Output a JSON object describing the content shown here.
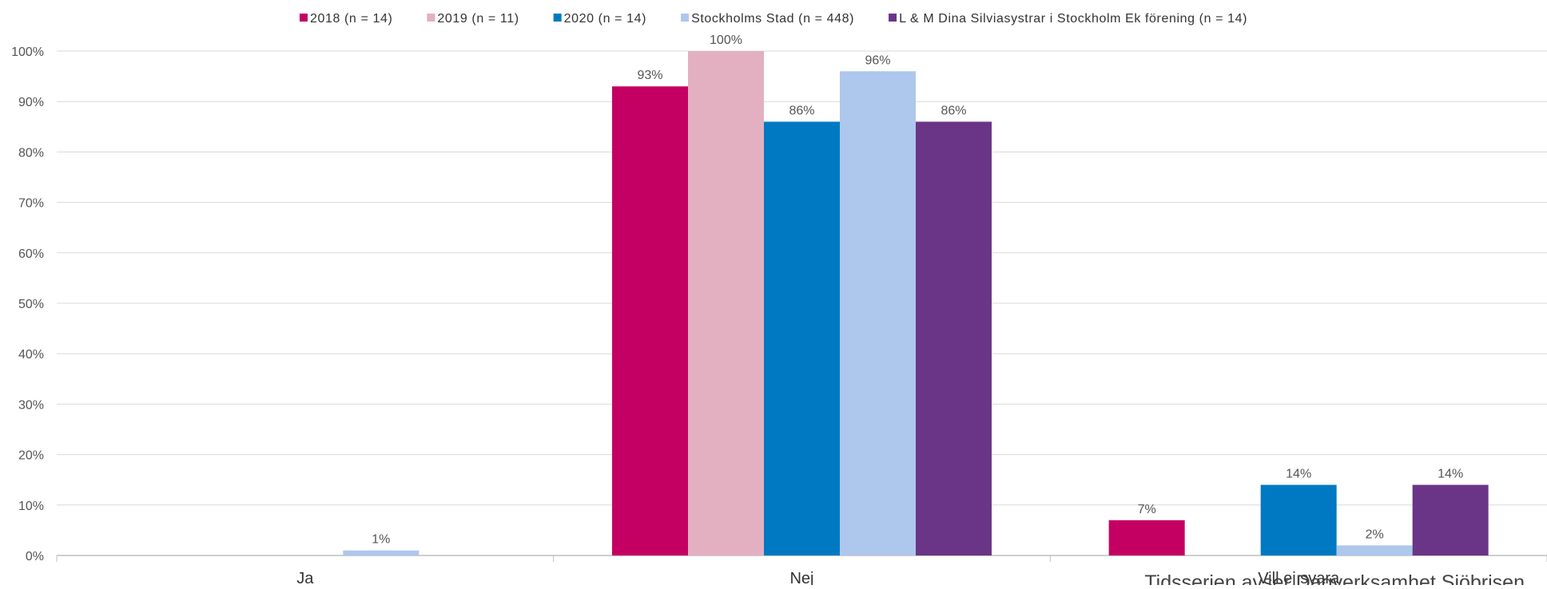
{
  "chart_data": {
    "type": "bar",
    "categories": [
      "Ja",
      "Nej",
      "Vill ej svara"
    ],
    "series": [
      {
        "name": "2018 (n = 14)",
        "color": "#c40062",
        "values": [
          null,
          93,
          7
        ]
      },
      {
        "name": "2019 (n = 11)",
        "color": "#e3b0c1",
        "values": [
          null,
          100,
          null
        ]
      },
      {
        "name": "2020 (n = 14)",
        "color": "#0079c2",
        "values": [
          null,
          86,
          14
        ]
      },
      {
        "name": "Stockholms Stad (n = 448)",
        "color": "#aec7ec",
        "values": [
          1,
          96,
          2
        ]
      },
      {
        "name": "L & M Dina Silviasystrar i Stockholm Ek förening (n = 14)",
        "color": "#6a3586",
        "values": [
          null,
          86,
          14
        ]
      }
    ],
    "ylim": [
      0,
      100
    ],
    "yticks": [
      "0%",
      "10%",
      "20%",
      "30%",
      "40%",
      "50%",
      "60%",
      "70%",
      "80%",
      "90%",
      "100%"
    ],
    "value_suffix": "%",
    "grid": true,
    "legend_position": "top"
  },
  "footnote": "Tidsserien avser Dagverksamhet Sjöbrisen"
}
